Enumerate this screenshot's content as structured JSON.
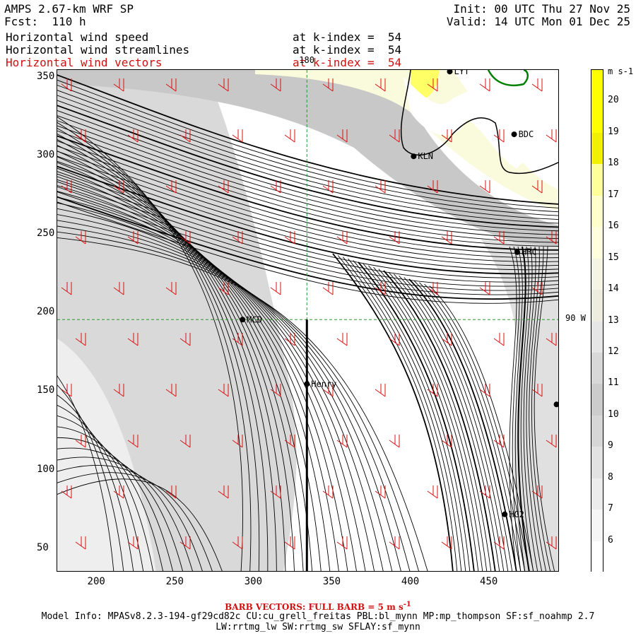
{
  "header": {
    "model": "AMPS 2.67-km WRF SP",
    "fcst": "Fcst:  110 h",
    "init": "Init: 00 UTC Thu 27 Nov 25",
    "valid": "Valid: 14 UTC Mon 01 Dec 25",
    "fields": [
      {
        "name": "Horizontal wind speed",
        "level": "at k-index =  54"
      },
      {
        "name": "Horizontal wind streamlines",
        "level": "at k-index =  54"
      },
      {
        "name": "Horizontal wind vectors",
        "level": "at k-index =  54"
      }
    ]
  },
  "map": {
    "x_ticks": [
      "200",
      "250",
      "300",
      "350",
      "400",
      "450"
    ],
    "y_ticks": [
      "350",
      "300",
      "250",
      "200",
      "150",
      "100",
      "50"
    ],
    "x_range": [
      175,
      495
    ],
    "y_range": [
      35,
      355
    ],
    "meridian_label": "180",
    "parallel_label": "90 W",
    "stations": [
      {
        "name": "LYT",
        "x": 425,
        "y": 354
      },
      {
        "name": "BDC",
        "x": 466,
        "y": 314
      },
      {
        "name": "KLN",
        "x": 402,
        "y": 300
      },
      {
        "name": "HRC",
        "x": 468,
        "y": 239
      },
      {
        "name": "MCD",
        "x": 293,
        "y": 196
      },
      {
        "name": "Henry",
        "x": 334,
        "y": 155
      },
      {
        "name": "",
        "x": 493,
        "y": 142
      },
      {
        "name": "HG2",
        "x": 460,
        "y": 72
      }
    ]
  },
  "colorbar": {
    "unit": "m s-1",
    "labels": [
      "20",
      "19",
      "18",
      "17",
      "16",
      "15",
      "14",
      "13",
      "12",
      "11",
      "10",
      "9",
      "8",
      "7",
      "6"
    ],
    "colors": [
      "#ffff00",
      "#ffff00",
      "#f0f000",
      "#ffff99",
      "#ffffcc",
      "#ffffdd",
      "#f5f5e6",
      "#ececdf",
      "#e6e6e6",
      "#d8d8d8",
      "#cccccc",
      "#d6d6d6",
      "#e2e2e2",
      "#ececec",
      "#f6f6f6",
      "#ffffff"
    ]
  },
  "footer": {
    "barb": "BARB VECTORS:  FULL BARB = 5 m s",
    "barb_sup": "-1",
    "model_info": "Model Info: MPASv8.2.3-194-gf29cd82c CU:cu_grell_freitas PBL:bl_mynn MP:mp_thompson SF:sf_noahmp 2.7",
    "model_info2": "LW:rrtmg_lw SW:rrtmg_sw SFLAY:sf_mynn"
  }
}
